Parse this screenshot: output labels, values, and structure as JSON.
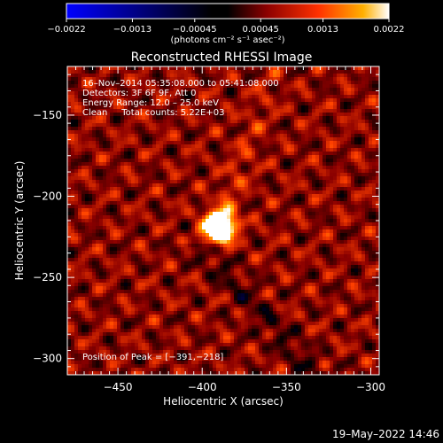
{
  "chart_data": {
    "type": "heatmap",
    "title": "Reconstructed RHESSI Image",
    "xlabel": "Heliocentric X (arcsec)",
    "ylabel": "Heliocentric Y (arcsec)",
    "xlim": [
      -480,
      -295
    ],
    "ylim": [
      -310,
      -120
    ],
    "x_ticks": [
      -450,
      -400,
      -350,
      -300
    ],
    "y_ticks": [
      -300,
      -250,
      -200,
      -150
    ],
    "x_tick_labels": [
      "−450",
      "−400",
      "−350",
      "−300"
    ],
    "y_tick_labels": [
      "−300",
      "−250",
      "−200",
      "−150"
    ],
    "colorbar": {
      "range": [
        -0.0022,
        0.0022
      ],
      "ticks": [
        -0.0022,
        -0.0013,
        -0.00045,
        0.00045,
        0.0013,
        0.0022
      ],
      "tick_labels": [
        "−0.0022",
        "−0.0013",
        "−0.00045",
        "0.00045",
        "0.0013",
        "0.0022"
      ],
      "units": "(photons cm⁻² s⁻¹ asec⁻²)"
    },
    "annotations": [
      "16–Nov–2014 05:35:08.000 to 05:41:08.000",
      "Detectors: 3F 6F 9F, Att 0",
      "Energy Range: 12.0 – 25.0 keV",
      "Clean     Total counts: 5.22E+03"
    ],
    "peak_label": "Position of Peak = [−391,−218]",
    "peak": {
      "x": -391,
      "y": -218
    },
    "footer": "19–May–2022 14:46"
  },
  "colors": {
    "background": "#000000",
    "text": "#ffffff",
    "colormap": [
      "#0000ff",
      "#000000",
      "#8b0000",
      "#ff4000",
      "#ffb000",
      "#ffffff"
    ]
  }
}
